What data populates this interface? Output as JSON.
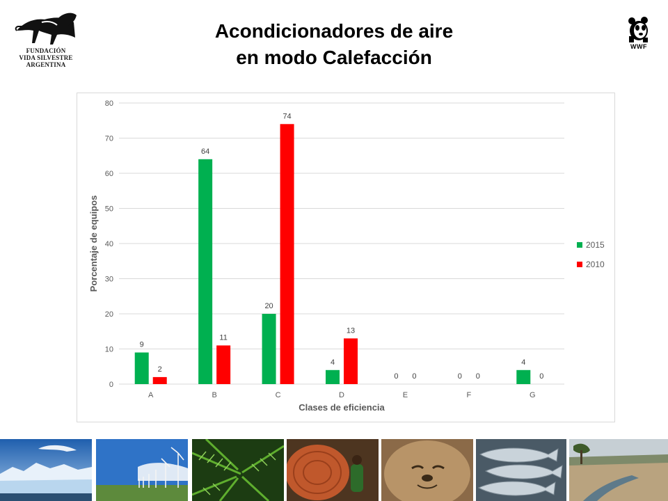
{
  "header": {
    "title_line1": "Acondicionadores de aire",
    "title_line2": "en modo Calefacción"
  },
  "logos": {
    "left_org_lines": [
      "FUNDACIÓN",
      "VIDA SILVESTRE",
      "ARGENTINA"
    ],
    "left_icon": "anteater-icon",
    "right_text": "WWF",
    "right_icon": "panda-icon"
  },
  "chart_data": {
    "type": "bar",
    "categories": [
      "A",
      "B",
      "C",
      "D",
      "E",
      "F",
      "G"
    ],
    "series": [
      {
        "name": "2015",
        "color": "#00b050",
        "values": [
          9,
          64,
          20,
          4,
          0,
          0,
          4
        ]
      },
      {
        "name": "2010",
        "color": "#ff0000",
        "values": [
          2,
          11,
          74,
          13,
          0,
          0,
          0
        ]
      }
    ],
    "title": "",
    "xlabel": "Clases de eficiencia",
    "ylabel": "Porcentaje de equipos",
    "ylim": [
      0,
      80
    ],
    "yticks": [
      0,
      10,
      20,
      30,
      40,
      50,
      60,
      70,
      80
    ],
    "grid": true,
    "legend_position": "right",
    "data_labels": true
  },
  "photo_strip": [
    {
      "subject": "glacier"
    },
    {
      "subject": "wind-turbines"
    },
    {
      "subject": "ferns"
    },
    {
      "subject": "tree-logging"
    },
    {
      "subject": "seal"
    },
    {
      "subject": "fish"
    },
    {
      "subject": "dry-river-landscape"
    }
  ]
}
